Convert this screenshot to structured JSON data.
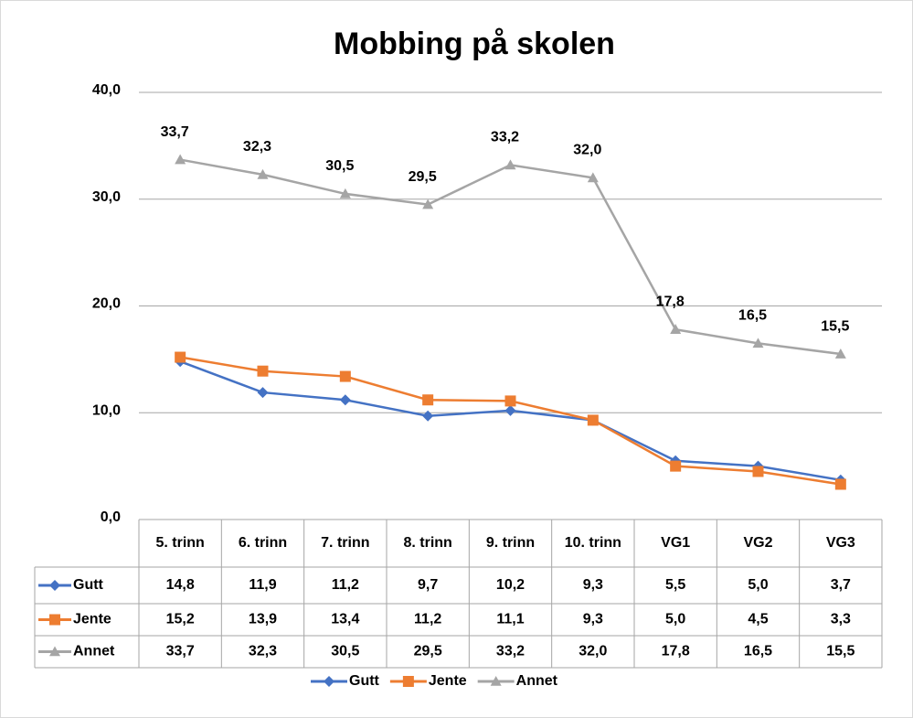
{
  "chart_data": {
    "type": "line",
    "title": "Mobbing på skolen",
    "categories": [
      "5. trinn",
      "6. trinn",
      "7. trinn",
      "8. trinn",
      "9. trinn",
      "10. trinn",
      "VG1",
      "VG2",
      "VG3"
    ],
    "series": [
      {
        "name": "Gutt",
        "color": "#4472c4",
        "marker": "diamond",
        "values": [
          14.8,
          11.9,
          11.2,
          9.7,
          10.2,
          9.3,
          5.5,
          5.0,
          3.7
        ],
        "value_labels": [
          "14,8",
          "11,9",
          "11,2",
          "9,7",
          "10,2",
          "9,3",
          "5,5",
          "5,0",
          "3,7"
        ]
      },
      {
        "name": "Jente",
        "color": "#ed7d31",
        "marker": "square",
        "values": [
          15.2,
          13.9,
          13.4,
          11.2,
          11.1,
          9.3,
          5.0,
          4.5,
          3.3
        ],
        "value_labels": [
          "15,2",
          "13,9",
          "13,4",
          "11,2",
          "11,1",
          "9,3",
          "5,0",
          "4,5",
          "3,3"
        ]
      },
      {
        "name": "Annet",
        "color": "#a5a5a5",
        "marker": "triangle",
        "data_labels": true,
        "values": [
          33.7,
          32.3,
          30.5,
          29.5,
          33.2,
          32.0,
          17.8,
          16.5,
          15.5
        ],
        "value_labels": [
          "33,7",
          "32,3",
          "30,5",
          "29,5",
          "33,2",
          "32,0",
          "17,8",
          "16,5",
          "15,5"
        ]
      }
    ],
    "ylim": [
      0,
      40
    ],
    "yticks": [
      {
        "value": 0,
        "label": "0,0"
      },
      {
        "value": 10,
        "label": "10,0"
      },
      {
        "value": 20,
        "label": "20,0"
      },
      {
        "value": 30,
        "label": "30,0"
      },
      {
        "value": 40,
        "label": "40,0"
      }
    ],
    "grid": true,
    "legend": "bottom"
  }
}
